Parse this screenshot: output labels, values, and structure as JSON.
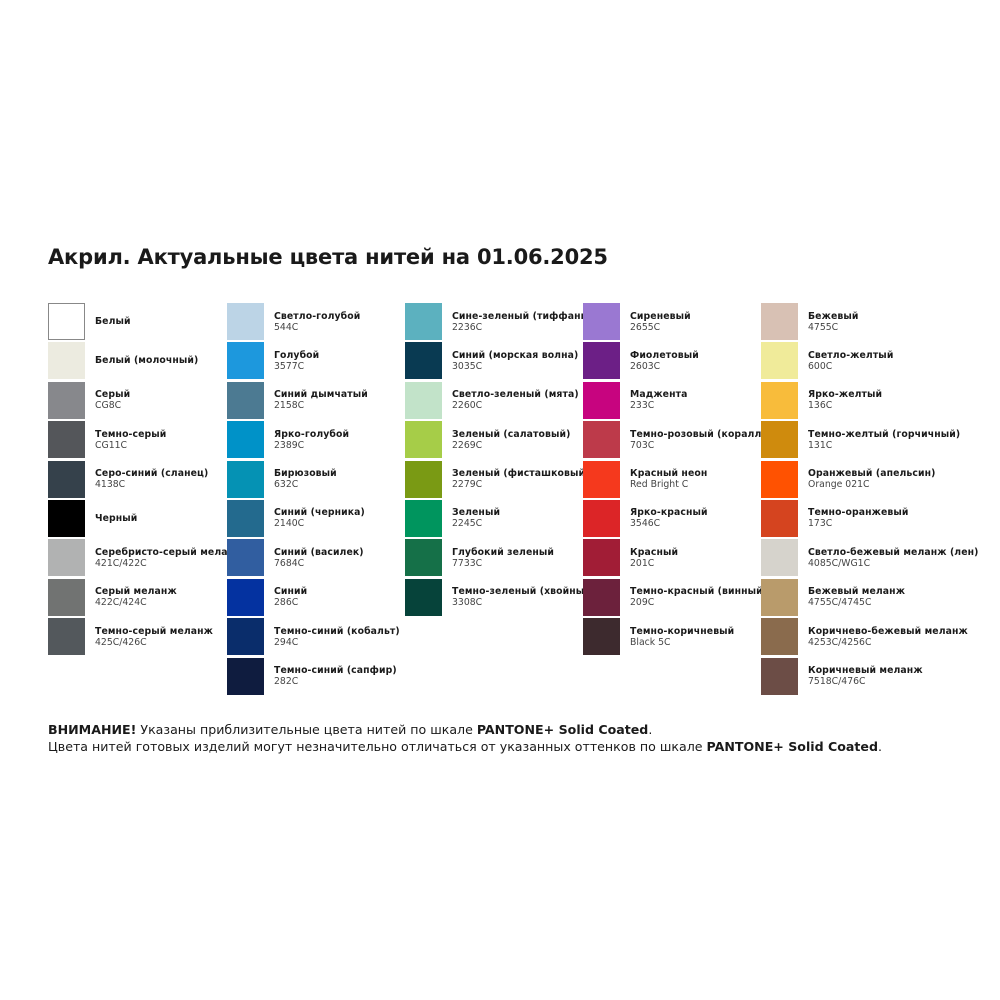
{
  "title": "Акрил. Актуальные цвета нитей на 01.06.2025",
  "columns": [
    [
      {
        "name": "Белый",
        "code": "",
        "color": "#ffffff"
      },
      {
        "name": "Белый (молочный)",
        "code": "",
        "color": "#ecebe0"
      },
      {
        "name": "Серый",
        "code": "CG8C",
        "color": "#87888c"
      },
      {
        "name": "Темно-серый",
        "code": "CG11C",
        "color": "#54565a"
      },
      {
        "name": "Серо-синий (сланец)",
        "code": "4138C",
        "color": "#35414b"
      },
      {
        "name": "Черный",
        "code": "",
        "color": "#000000"
      },
      {
        "name": "Серебристо-серый меланж",
        "code": "421C/422C",
        "color": "#b1b2b2"
      },
      {
        "name": "Серый меланж",
        "code": "422C/424C",
        "color": "#717372"
      },
      {
        "name": "Темно-серый меланж",
        "code": "425C/426C",
        "color": "#53585c"
      }
    ],
    [
      {
        "name": "Светло-голубой",
        "code": "544C",
        "color": "#bcd4e6"
      },
      {
        "name": "Голубой",
        "code": "3577C",
        "color": "#1d98dd"
      },
      {
        "name": "Синий дымчатый",
        "code": "2158C",
        "color": "#4c7a92"
      },
      {
        "name": "Ярко-голубой",
        "code": "2389C",
        "color": "#0092c8"
      },
      {
        "name": "Бирюзовый",
        "code": "632C",
        "color": "#0592b4"
      },
      {
        "name": "Синий (черника)",
        "code": "2140C",
        "color": "#236a8e"
      },
      {
        "name": "Синий (василек)",
        "code": "7684C",
        "color": "#315ea0"
      },
      {
        "name": "Синий",
        "code": "286C",
        "color": "#0432a0"
      },
      {
        "name": "Темно-синий (кобальт)",
        "code": "294C",
        "color": "#0a2d6b"
      },
      {
        "name": "Темно-синий (сапфир)",
        "code": "282C",
        "color": "#0f1c3f"
      }
    ],
    [
      {
        "name": "Сине-зеленый (тиффани)",
        "code": "2236C",
        "color": "#5cb1bf"
      },
      {
        "name": "Синий (морская волна)",
        "code": "3035C",
        "color": "#093a52"
      },
      {
        "name": "Светло-зеленый (мята)",
        "code": "2260C",
        "color": "#c2e3c9"
      },
      {
        "name": "Зеленый (салатовый)",
        "code": "2269C",
        "color": "#a6cd48"
      },
      {
        "name": "Зеленый (фисташковый)",
        "code": "2279C",
        "color": "#7a9a14"
      },
      {
        "name": "Зеленый",
        "code": "2245C",
        "color": "#00955e"
      },
      {
        "name": "Глубокий зеленый",
        "code": "7733C",
        "color": "#157048"
      },
      {
        "name": "Темно-зеленый (хвойный)",
        "code": "3308C",
        "color": "#06433a"
      }
    ],
    [
      {
        "name": "Сиреневый",
        "code": "2655C",
        "color": "#9a78d2"
      },
      {
        "name": "Фиолетовый",
        "code": "2603C",
        "color": "#6c1f86"
      },
      {
        "name": "Маджента",
        "code": "233C",
        "color": "#c7047f"
      },
      {
        "name": "Темно-розовый (коралл)",
        "code": "703C",
        "color": "#bd3a4a"
      },
      {
        "name": "Красный неон",
        "code": "Red Bright C",
        "color": "#f5391d"
      },
      {
        "name": "Ярко-красный",
        "code": "3546C",
        "color": "#dc2527"
      },
      {
        "name": "Красный",
        "code": "201C",
        "color": "#a11d36"
      },
      {
        "name": "Темно-красный (винный)",
        "code": "209C",
        "color": "#6c213c"
      },
      {
        "name": "Темно-коричневый",
        "code": "Black 5C",
        "color": "#3d2a2e"
      }
    ],
    [
      {
        "name": "Бежевый",
        "code": "4755C",
        "color": "#d8c1b4"
      },
      {
        "name": "Светло-желтый",
        "code": "600C",
        "color": "#f0eb9a"
      },
      {
        "name": "Ярко-желтый",
        "code": "136C",
        "color": "#f8bc3b"
      },
      {
        "name": "Темно-желтый (горчичный)",
        "code": "131C",
        "color": "#cf8b0d"
      },
      {
        "name": "Оранжевый (апельсин)",
        "code": "Orange 021C",
        "color": "#ff5201"
      },
      {
        "name": "Темно-оранжевый",
        "code": "173C",
        "color": "#d5441f"
      },
      {
        "name": "Светло-бежевый меланж (лен)",
        "code": "4085C/WG1C",
        "color": "#d6d3cc"
      },
      {
        "name": "Бежевый меланж",
        "code": "4755C/4745C",
        "color": "#b99b6b"
      },
      {
        "name": "Коричнево-бежевый меланж",
        "code": "4253C/4256C",
        "color": "#8a6b4d"
      },
      {
        "name": "Коричневый меланж",
        "code": "7518C/476C",
        "color": "#6c4d46"
      }
    ]
  ],
  "note": {
    "line1_bold": "ВНИМАНИЕ!",
    "line1_text": " Указаны приблизительные цвета нитей по шкале ",
    "line1_brand": "PANTONE+ Solid Coated",
    "line1_end": ".",
    "line2_text": "Цвета нитей готовых изделий могут незначительно отличаться от указанных оттенков по шкале ",
    "line2_brand": "PANTONE+ Solid Coated",
    "line2_end": "."
  }
}
